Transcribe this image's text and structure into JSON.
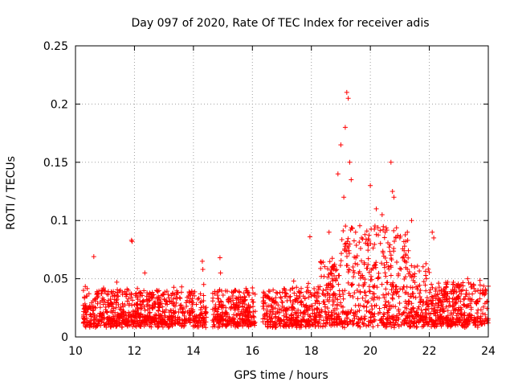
{
  "chart_data": {
    "type": "scatter",
    "title": "Day 097 of 2020, Rate Of TEC Index for receiver adis",
    "xlabel": "GPS time / hours",
    "ylabel": "ROTI / TECUs",
    "xlim": [
      10,
      24
    ],
    "ylim": [
      0,
      0.25
    ],
    "x_ticks": [
      10,
      12,
      14,
      16,
      18,
      20,
      22,
      24
    ],
    "x_tick_labels": [
      "10",
      "12",
      "14",
      "16",
      "18",
      "20",
      "22",
      "24"
    ],
    "y_ticks": [
      0,
      0.05,
      0.1,
      0.15,
      0.2,
      0.25
    ],
    "y_tick_labels": [
      "0",
      "0.05",
      "0.1",
      "0.15",
      "0.2",
      "0.25"
    ],
    "grid": true,
    "marker": "plus",
    "series_color": "#ff0000",
    "data_gaps_hours": [
      [
        14.45,
        14.65
      ],
      [
        16.1,
        16.35
      ]
    ],
    "series": [
      {
        "name": "ROTI",
        "x": [
          10.3,
          10.45,
          10.6,
          10.62,
          10.8,
          11.0,
          11.2,
          11.4,
          11.45,
          11.7,
          11.9,
          11.92,
          12.1,
          12.3,
          12.35,
          12.5,
          12.8,
          13.0,
          13.3,
          13.6,
          13.9,
          14.1,
          14.3,
          14.32,
          14.35,
          14.7,
          14.9,
          14.92,
          15.2,
          15.5,
          15.8,
          15.85,
          16.5,
          16.7,
          17.0,
          17.1,
          17.4,
          17.6,
          17.9,
          17.95,
          18.2,
          18.4,
          18.6,
          18.7,
          18.9,
          19.0,
          19.1,
          19.15,
          19.2,
          19.25,
          19.3,
          19.35,
          19.5,
          19.7,
          19.9,
          20.0,
          20.2,
          20.4,
          20.5,
          20.7,
          20.75,
          20.8,
          21.0,
          21.2,
          21.4,
          21.5,
          21.7,
          21.9,
          22.1,
          22.15,
          22.4,
          22.6,
          22.8,
          23.0,
          23.3,
          23.5,
          23.8,
          23.95
        ],
        "y": [
          0.015,
          0.025,
          0.02,
          0.069,
          0.018,
          0.03,
          0.022,
          0.047,
          0.035,
          0.02,
          0.083,
          0.082,
          0.025,
          0.03,
          0.055,
          0.02,
          0.028,
          0.022,
          0.03,
          0.025,
          0.02,
          0.028,
          0.065,
          0.058,
          0.045,
          0.015,
          0.068,
          0.055,
          0.03,
          0.025,
          0.04,
          0.038,
          0.015,
          0.025,
          0.03,
          0.04,
          0.048,
          0.035,
          0.046,
          0.086,
          0.03,
          0.04,
          0.09,
          0.06,
          0.14,
          0.165,
          0.12,
          0.18,
          0.21,
          0.205,
          0.15,
          0.135,
          0.09,
          0.085,
          0.08,
          0.13,
          0.11,
          0.105,
          0.09,
          0.15,
          0.125,
          0.12,
          0.085,
          0.07,
          0.1,
          0.06,
          0.04,
          0.05,
          0.09,
          0.085,
          0.04,
          0.035,
          0.045,
          0.035,
          0.05,
          0.045,
          0.04,
          0.03
        ]
      }
    ]
  }
}
